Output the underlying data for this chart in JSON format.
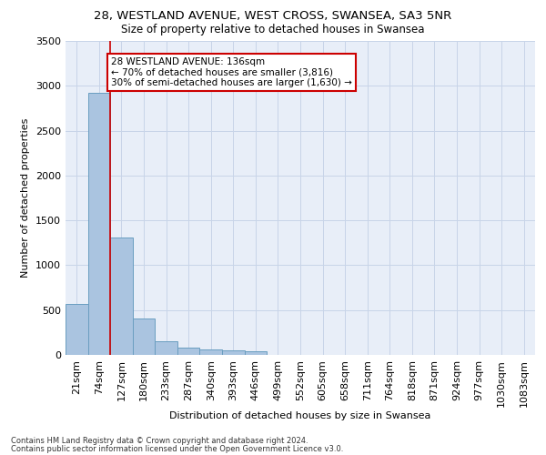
{
  "title1": "28, WESTLAND AVENUE, WEST CROSS, SWANSEA, SA3 5NR",
  "title2": "Size of property relative to detached houses in Swansea",
  "xlabel": "Distribution of detached houses by size in Swansea",
  "ylabel": "Number of detached properties",
  "footnote1": "Contains HM Land Registry data © Crown copyright and database right 2024.",
  "footnote2": "Contains public sector information licensed under the Open Government Licence v3.0.",
  "categories": [
    "21sqm",
    "74sqm",
    "127sqm",
    "180sqm",
    "233sqm",
    "287sqm",
    "340sqm",
    "393sqm",
    "446sqm",
    "499sqm",
    "552sqm",
    "605sqm",
    "658sqm",
    "711sqm",
    "764sqm",
    "818sqm",
    "871sqm",
    "924sqm",
    "977sqm",
    "1030sqm",
    "1083sqm"
  ],
  "values": [
    570,
    2920,
    1310,
    405,
    155,
    80,
    60,
    55,
    45,
    0,
    0,
    0,
    0,
    0,
    0,
    0,
    0,
    0,
    0,
    0,
    0
  ],
  "bar_color": "#aac4e0",
  "bar_edge_color": "#6a9ec0",
  "annotation_text": "28 WESTLAND AVENUE: 136sqm\n← 70% of detached houses are smaller (3,816)\n30% of semi-detached houses are larger (1,630) →",
  "annotation_box_color": "#ffffff",
  "annotation_box_edge": "#cc0000",
  "vline_color": "#cc0000",
  "grid_color": "#c8d4e8",
  "bg_color": "#e8eef8",
  "ylim": [
    0,
    3500
  ],
  "yticks": [
    0,
    500,
    1000,
    1500,
    2000,
    2500,
    3000,
    3500
  ]
}
